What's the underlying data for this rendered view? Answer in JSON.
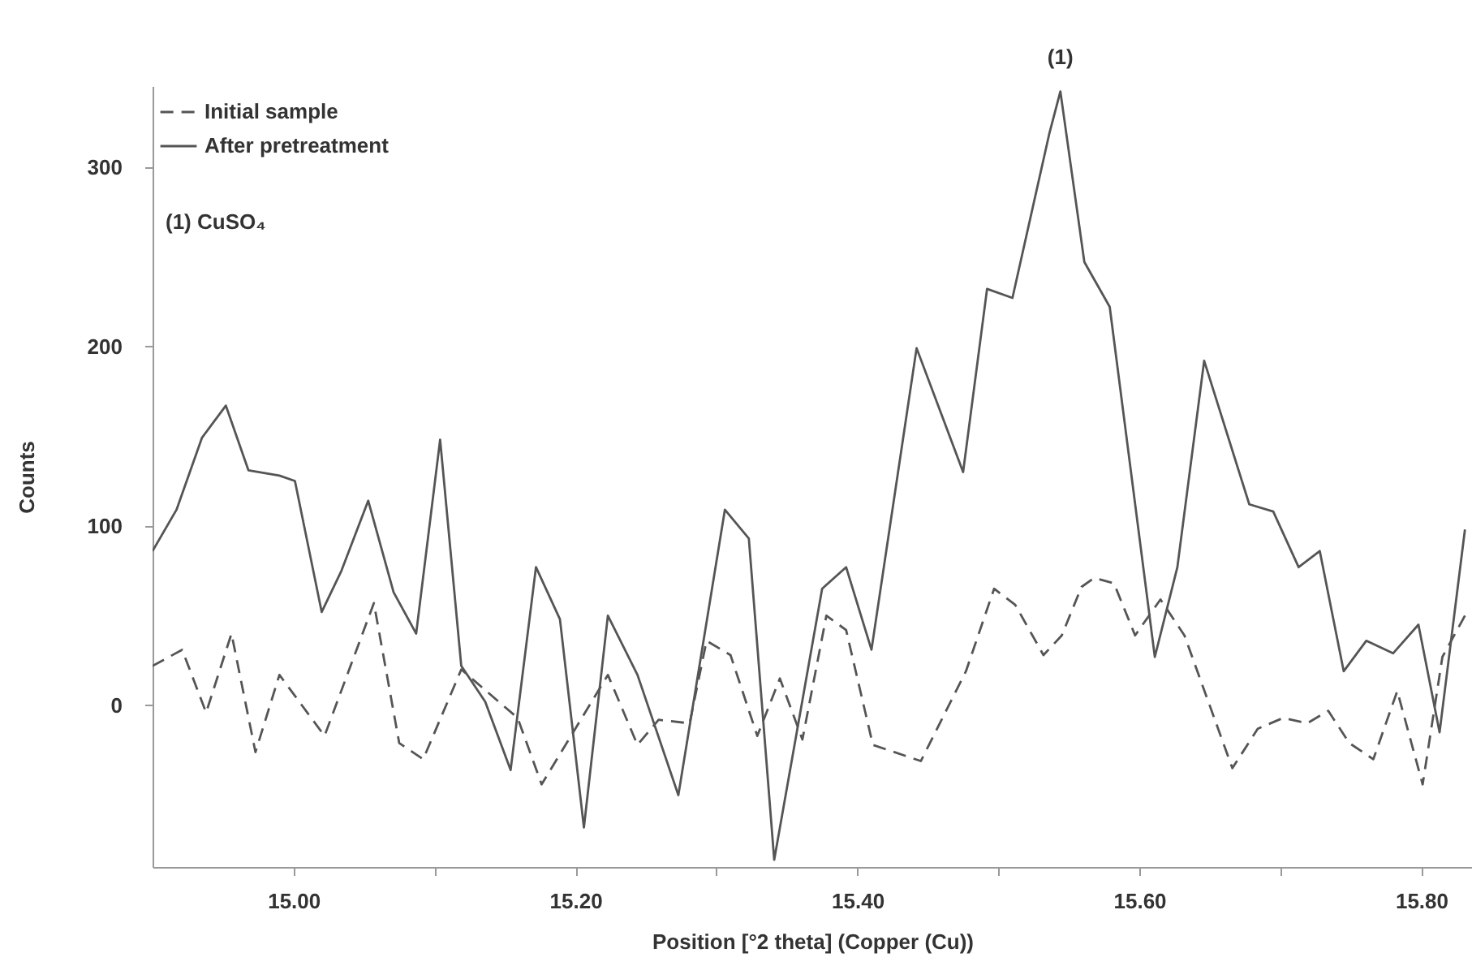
{
  "chart_data": {
    "type": "line",
    "xlabel": "Position [°2 theta] (Copper (Cu))",
    "ylabel": "Counts",
    "xlim": [
      14.9,
      15.836
    ],
    "ylim": [
      -90,
      345
    ],
    "xticks": [
      {
        "value": 15.0,
        "label": "15.00"
      },
      {
        "value": 15.1,
        "label": null
      },
      {
        "value": 15.2,
        "label": "15.20"
      },
      {
        "value": 15.3,
        "label": null
      },
      {
        "value": 15.4,
        "label": "15.40"
      },
      {
        "value": 15.5,
        "label": null
      },
      {
        "value": 15.6,
        "label": "15.60"
      },
      {
        "value": 15.7,
        "label": null
      },
      {
        "value": 15.8,
        "label": "15.80"
      }
    ],
    "yticks": [
      0,
      100,
      200,
      300
    ],
    "grid": false,
    "legend": "top left",
    "marker": "none",
    "annotations": [
      {
        "text": "(1)",
        "x": 15.544,
        "y": 342
      },
      "(1)     CuSO₄"
    ],
    "series": [
      {
        "name": "Initial sample",
        "color": "#555555",
        "line_style": "dashed",
        "x": [
          14.9,
          14.921,
          14.938,
          14.956,
          14.973,
          14.99,
          15.022,
          15.057,
          15.075,
          15.092,
          15.119,
          15.159,
          15.176,
          15.223,
          15.244,
          15.259,
          15.281,
          15.293,
          15.31,
          15.329,
          15.345,
          15.361,
          15.378,
          15.392,
          15.411,
          15.445,
          15.477,
          15.497,
          15.512,
          15.532,
          15.545,
          15.559,
          15.568,
          15.582,
          15.597,
          15.615,
          15.632,
          15.666,
          15.684,
          15.702,
          15.719,
          15.734,
          15.749,
          15.766,
          15.783,
          15.801,
          15.815,
          15.831
        ],
        "values": [
          22,
          31,
          -4,
          40,
          -26,
          17,
          -17,
          57,
          -21,
          -30,
          20,
          -7,
          -44,
          17,
          -22,
          -8,
          -10,
          36,
          28,
          -17,
          15,
          -19,
          50,
          42,
          -22,
          -31,
          19,
          65,
          56,
          28,
          39,
          66,
          71,
          68,
          39,
          59,
          39,
          -35,
          -13,
          -7,
          -10,
          -3,
          -21,
          -30,
          8,
          -44,
          27,
          50
        ]
      },
      {
        "name": "After pretreatment",
        "color": "#555555",
        "line_style": "solid",
        "x": [
          14.9,
          14.917,
          14.935,
          14.952,
          14.968,
          14.99,
          15.001,
          15.02,
          15.034,
          15.053,
          15.071,
          15.087,
          15.104,
          15.119,
          15.136,
          15.154,
          15.172,
          15.189,
          15.206,
          15.223,
          15.244,
          15.273,
          15.306,
          15.323,
          15.341,
          15.375,
          15.392,
          15.41,
          15.442,
          15.475,
          15.492,
          15.51,
          15.536,
          15.544,
          15.561,
          15.579,
          15.611,
          15.627,
          15.646,
          15.678,
          15.695,
          15.713,
          15.728,
          15.745,
          15.761,
          15.78,
          15.798,
          15.813,
          15.831
        ],
        "values": [
          86,
          109,
          149,
          167,
          131,
          128,
          125,
          52,
          75,
          114,
          63,
          40,
          148,
          22,
          2,
          -36,
          77,
          48,
          -68,
          50,
          17,
          -50,
          109,
          93,
          -86,
          65,
          77,
          31,
          199,
          130,
          232,
          227,
          318,
          342,
          247,
          222,
          27,
          77,
          192,
          112,
          108,
          77,
          86,
          19,
          36,
          29,
          45,
          -15,
          98
        ]
      }
    ]
  }
}
